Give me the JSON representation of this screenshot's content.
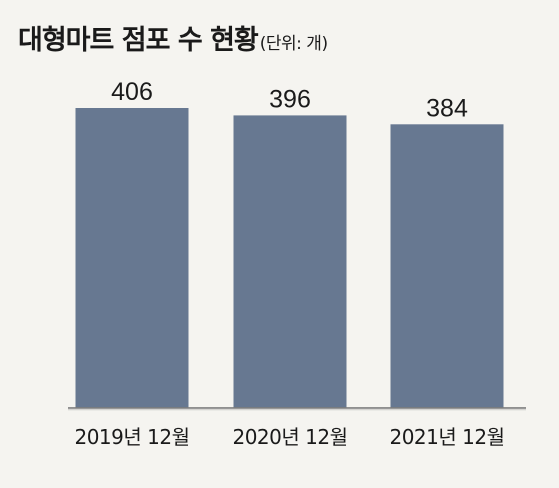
{
  "title": "대형마트 점포 수 현황",
  "unit": "(단위: 개)",
  "chart_data": {
    "type": "bar",
    "categories": [
      "2019년 12월",
      "2020년 12월",
      "2021년 12월"
    ],
    "values": [
      406,
      396,
      384
    ],
    "bar_color": "#677891",
    "background_color": "#f5f4f0",
    "grid": false,
    "legend": "none"
  }
}
